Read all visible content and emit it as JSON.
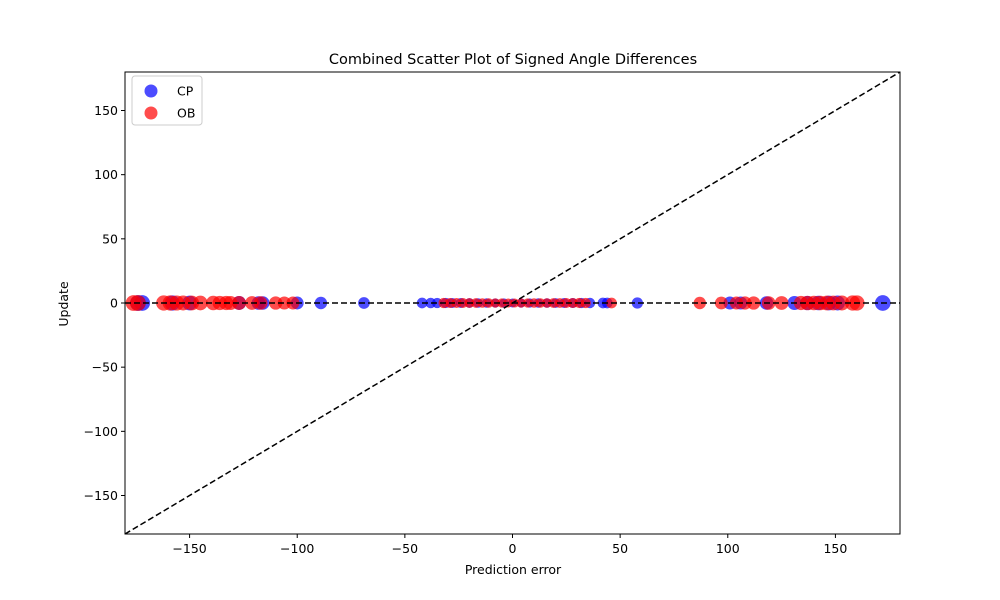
{
  "chart_data": {
    "type": "scatter",
    "title": "Combined Scatter Plot of Signed Angle Differences",
    "xlabel": "Prediction error",
    "ylabel": "Update",
    "xlim": [
      -180,
      180
    ],
    "ylim": [
      -180,
      180
    ],
    "xticks": [
      -150,
      -100,
      -50,
      0,
      50,
      100,
      150
    ],
    "yticks": [
      -150,
      -100,
      -50,
      0,
      50,
      100,
      150
    ],
    "xtick_labels": [
      "−150",
      "−100",
      "−50",
      "0",
      "50",
      "100",
      "150"
    ],
    "ytick_labels": [
      "−150",
      "−100",
      "−50",
      "0",
      "50",
      "100",
      "150"
    ],
    "grid": false,
    "legend_position": "upper-left",
    "reference_lines": [
      "y = x",
      "y = 0"
    ],
    "series": [
      {
        "name": "CP",
        "color": "#0000ff",
        "x": [
          -174,
          -172,
          -158,
          -150,
          -127,
          -118,
          -116,
          -100,
          -89,
          -69,
          -42,
          -38,
          -35,
          -31,
          -28,
          -24,
          -20,
          -16,
          -12,
          -8,
          -4,
          0,
          4,
          8,
          12,
          16,
          20,
          24,
          28,
          32,
          36,
          42,
          44,
          58,
          101,
          106,
          118,
          131,
          137,
          142,
          147,
          151,
          172
        ],
        "y": [
          0,
          0,
          0,
          0,
          0,
          0,
          0,
          0,
          0,
          0,
          0,
          0,
          0,
          0,
          0,
          0,
          0,
          0,
          0,
          0,
          0,
          0,
          0,
          0,
          0,
          0,
          0,
          0,
          0,
          0,
          0,
          0,
          0,
          0,
          0,
          0,
          0,
          0,
          0,
          0,
          0,
          0,
          0
        ]
      },
      {
        "name": "OB",
        "color": "#ff0000",
        "x": [
          -176,
          -174,
          -162,
          -159,
          -156,
          -153,
          -149,
          -145,
          -139,
          -136,
          -133,
          -131,
          -127,
          -121,
          -117,
          -110,
          -106,
          -102,
          -32,
          -29,
          -26,
          -23,
          -20,
          -17,
          -14,
          -11,
          -8,
          -5,
          -2,
          1,
          4,
          7,
          10,
          13,
          16,
          19,
          22,
          25,
          28,
          31,
          34,
          46,
          87,
          97,
          104,
          108,
          112,
          119,
          125,
          134,
          137,
          140,
          143,
          146,
          149,
          153,
          158,
          160
        ],
        "y": [
          0,
          0,
          0,
          0,
          0,
          0,
          0,
          0,
          0,
          0,
          0,
          0,
          0,
          0,
          0,
          0,
          0,
          0,
          0,
          0,
          0,
          0,
          0,
          0,
          0,
          0,
          0,
          0,
          0,
          0,
          0,
          0,
          0,
          0,
          0,
          0,
          0,
          0,
          0,
          0,
          0,
          0,
          0,
          0,
          0,
          0,
          0,
          0,
          0,
          0,
          0,
          0,
          0,
          0,
          0,
          0,
          0,
          0
        ]
      }
    ]
  }
}
